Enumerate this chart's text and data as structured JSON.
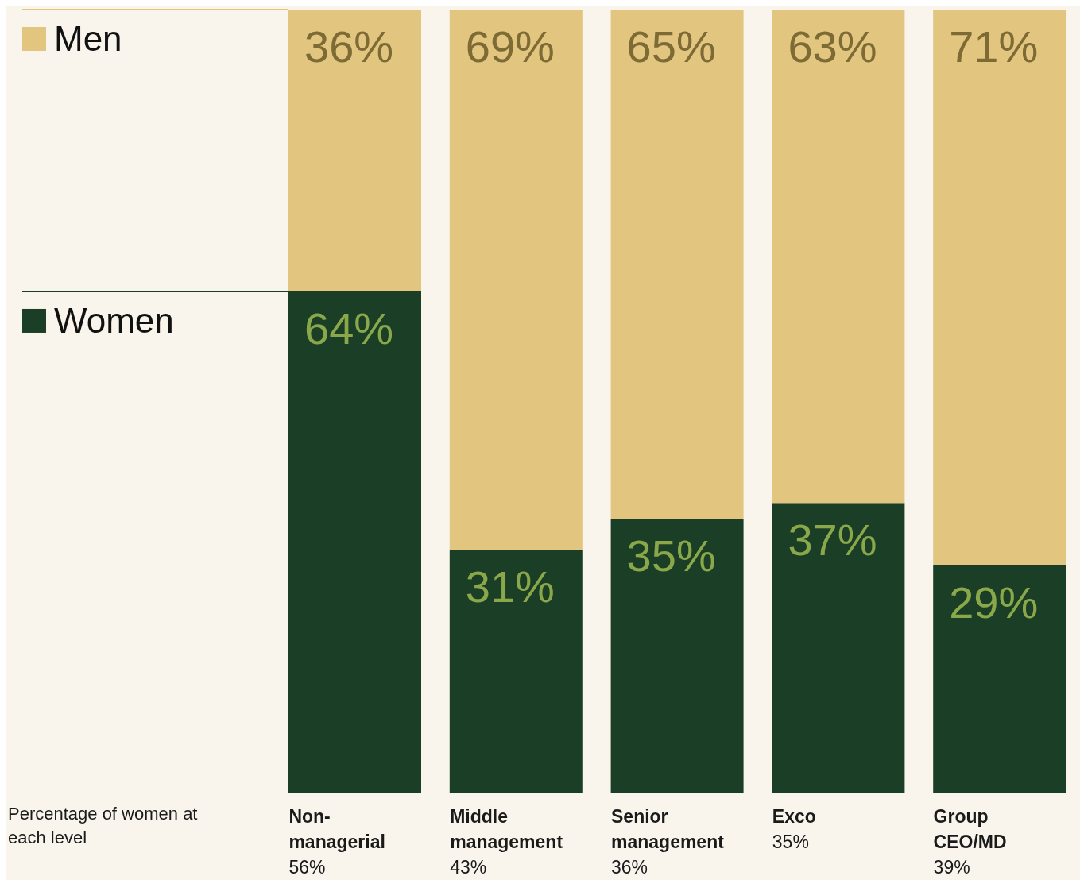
{
  "chart_data": {
    "type": "bar",
    "stacked": true,
    "legend": "top left",
    "categories": [
      "Non-managerial",
      "Middle management",
      "Senior management",
      "Exco",
      "Group CEO/MD"
    ],
    "series": [
      {
        "name": "Women",
        "color": "#1b3f26",
        "values": [
          64,
          31,
          35,
          37,
          29
        ],
        "value_labels": [
          "64%",
          "31%",
          "35%",
          "37%",
          "29%"
        ]
      },
      {
        "name": "Men",
        "color": "#e2c680",
        "values": [
          36,
          69,
          65,
          63,
          71
        ],
        "value_labels": [
          "36%",
          "69%",
          "65%",
          "63%",
          "71%"
        ]
      }
    ],
    "annotations": [
      "Percentage of women at each level",
      "56%",
      "43%",
      "36%",
      "35%",
      "39%"
    ]
  }
}
